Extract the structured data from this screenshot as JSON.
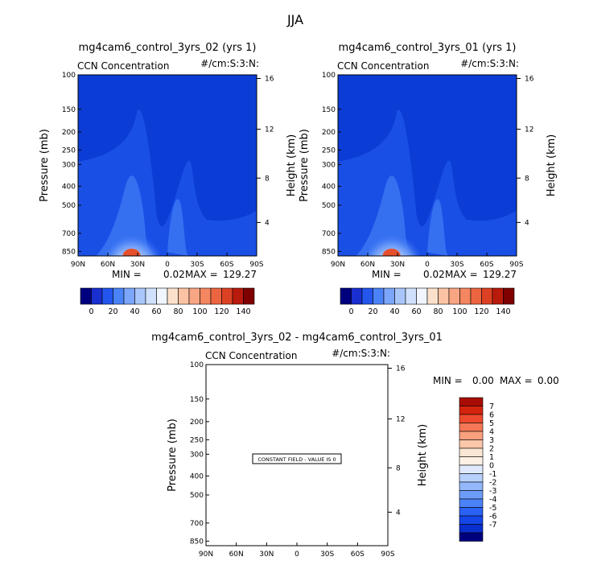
{
  "page": {
    "title": "JJA"
  },
  "colors": {
    "bg_blue": "#0b3dd6",
    "diff_scale": [
      "#00007f",
      "#0000a8",
      "#0a2fcf",
      "#1446e8",
      "#2962f5",
      "#4a82f7",
      "#6d9cf8",
      "#93b7fa",
      "#b8d0fc",
      "#dfeafe",
      "#fbe6d4",
      "#fbc7aa",
      "#f9a07e",
      "#f57757",
      "#ee4a2d",
      "#d4240e",
      "#a80d05",
      "#7f0000"
    ]
  },
  "chart_data": [
    {
      "type": "contour",
      "title": "mg4cam6_control_3yrs_02 (yrs 1)",
      "field_label": "CCN Concentration",
      "units": "#/cm:S:3:N:",
      "ylabel": "Pressure (mb)",
      "y2label": "Height (km)",
      "x_ticks": [
        "90N",
        "60N",
        "30N",
        "0",
        "30S",
        "60S",
        "90S"
      ],
      "y_ticks": [
        "100",
        "150",
        "200",
        "250",
        "300",
        "400",
        "500",
        "700",
        "850"
      ],
      "y2_ticks": [
        "16",
        "12",
        "8",
        "4"
      ],
      "min_label": "MIN =",
      "min_value": "0.02",
      "max_label": "MAX =",
      "max_value": "129.27",
      "colorbar_labels": [
        "0",
        "20",
        "40",
        "60",
        "80",
        "100",
        "120",
        "140"
      ]
    },
    {
      "type": "contour",
      "title": "mg4cam6_control_3yrs_01 (yrs 1)",
      "field_label": "CCN Concentration",
      "units": "#/cm:S:3:N:",
      "ylabel": "Pressure (mb)",
      "y2label": "Height (km)",
      "x_ticks": [
        "90N",
        "60N",
        "30N",
        "0",
        "30S",
        "60S",
        "90S"
      ],
      "y_ticks": [
        "100",
        "150",
        "200",
        "250",
        "300",
        "400",
        "500",
        "700",
        "850"
      ],
      "y2_ticks": [
        "16",
        "12",
        "8",
        "4"
      ],
      "min_label": "MIN =",
      "min_value": "0.02",
      "max_label": "MAX =",
      "max_value": "129.27",
      "colorbar_labels": [
        "0",
        "20",
        "40",
        "60",
        "80",
        "100",
        "120",
        "140"
      ]
    },
    {
      "type": "contour",
      "title": "mg4cam6_control_3yrs_02 - mg4cam6_control_3yrs_01",
      "field_label": "CCN Concentration",
      "units": "#/cm:S:3:N:",
      "ylabel": "Pressure (mb)",
      "y2label": "Height (km)",
      "x_ticks": [
        "90N",
        "60N",
        "30N",
        "0",
        "30S",
        "60S",
        "90S"
      ],
      "y_ticks": [
        "100",
        "150",
        "200",
        "250",
        "300",
        "400",
        "500",
        "700",
        "850"
      ],
      "y2_ticks": [
        "16",
        "12",
        "8",
        "4"
      ],
      "min_label": "MIN =",
      "min_value": "0.00",
      "max_label": "MAX =",
      "max_value": "0.00",
      "annotation": "CONSTANT FIELD - VALUE IS 0",
      "colorbar_labels": [
        "7",
        "6",
        "5",
        "4",
        "3",
        "2",
        "1",
        "0",
        "-1",
        "-2",
        "-3",
        "-4",
        "-5",
        "-6",
        "-7"
      ]
    }
  ]
}
